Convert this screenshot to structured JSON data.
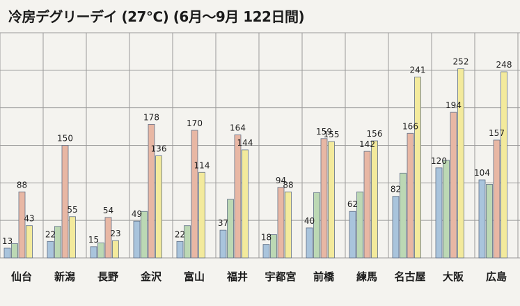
{
  "chart_data": {
    "type": "bar",
    "title": "冷房デグリーデイ (27℃) (6月～9月 122日間)",
    "categories": [
      "仙台",
      "新潟",
      "長野",
      "金沢",
      "富山",
      "福井",
      "宇都宮",
      "前橋",
      "練馬",
      "名古屋",
      "大阪",
      "広島"
    ],
    "ylim": [
      0,
      300
    ],
    "y_gridlines": [
      0,
      50,
      100,
      150,
      200,
      250,
      300
    ],
    "grid": true,
    "legend": "none",
    "series": [
      {
        "values": [
          13,
          22,
          15,
          49,
          22,
          37,
          18,
          40,
          62,
          82,
          120,
          104
        ],
        "color": "#a9c4dc"
      },
      {
        "values": [
          19,
          42,
          20,
          62,
          43,
          78,
          31,
          87,
          88,
          113,
          130,
          98
        ],
        "color": "#bcd8b4"
      },
      {
        "values": [
          88,
          150,
          54,
          178,
          170,
          164,
          94,
          159,
          142,
          166,
          194,
          157
        ],
        "color": "#e8b7a4"
      },
      {
        "values": [
          43,
          55,
          23,
          136,
          114,
          144,
          88,
          155,
          156,
          241,
          252,
          248
        ],
        "color": "#f3ea9c"
      }
    ],
    "data_labels": [
      {
        "category": "仙台",
        "series": 0,
        "text": "13"
      },
      {
        "category": "仙台",
        "series": 2,
        "text": "88"
      },
      {
        "category": "仙台",
        "series": 3,
        "text": "43"
      },
      {
        "category": "新潟",
        "series": 0,
        "text": "22"
      },
      {
        "category": "新潟",
        "series": 2,
        "text": "150"
      },
      {
        "category": "新潟",
        "series": 3,
        "text": "55"
      },
      {
        "category": "長野",
        "series": 0,
        "text": "15"
      },
      {
        "category": "長野",
        "series": 2,
        "text": "54"
      },
      {
        "category": "長野",
        "series": 3,
        "text": "23"
      },
      {
        "category": "金沢",
        "series": 0,
        "text": "49"
      },
      {
        "category": "金沢",
        "series": 2,
        "text": "178"
      },
      {
        "category": "金沢",
        "series": 3,
        "text": "136"
      },
      {
        "category": "富山",
        "series": 0,
        "text": "22"
      },
      {
        "category": "富山",
        "series": 2,
        "text": "170"
      },
      {
        "category": "富山",
        "series": 3,
        "text": "114"
      },
      {
        "category": "福井",
        "series": 0,
        "text": "37"
      },
      {
        "category": "福井",
        "series": 2,
        "text": "164"
      },
      {
        "category": "福井",
        "series": 3,
        "text": "144"
      },
      {
        "category": "宇都宮",
        "series": 0,
        "text": "18"
      },
      {
        "category": "宇都宮",
        "series": 2,
        "text": "94"
      },
      {
        "category": "宇都宮",
        "series": 3,
        "text": "88"
      },
      {
        "category": "前橋",
        "series": 0,
        "text": "40"
      },
      {
        "category": "前橋",
        "series": 2,
        "text": "159"
      },
      {
        "category": "前橋",
        "series": 3,
        "text": "155"
      },
      {
        "category": "練馬",
        "series": 0,
        "text": "62"
      },
      {
        "category": "練馬",
        "series": 2,
        "text": "142"
      },
      {
        "category": "練馬",
        "series": 3,
        "text": "156"
      },
      {
        "category": "名古屋",
        "series": 0,
        "text": "82"
      },
      {
        "category": "名古屋",
        "series": 2,
        "text": "166"
      },
      {
        "category": "名古屋",
        "series": 3,
        "text": "241"
      },
      {
        "category": "大阪",
        "series": 0,
        "text": "120"
      },
      {
        "category": "大阪",
        "series": 2,
        "text": "194"
      },
      {
        "category": "大阪",
        "series": 3,
        "text": "252"
      },
      {
        "category": "広島",
        "series": 0,
        "text": "104"
      },
      {
        "category": "広島",
        "series": 2,
        "text": "157"
      },
      {
        "category": "広島",
        "series": 3,
        "text": "248"
      }
    ]
  }
}
